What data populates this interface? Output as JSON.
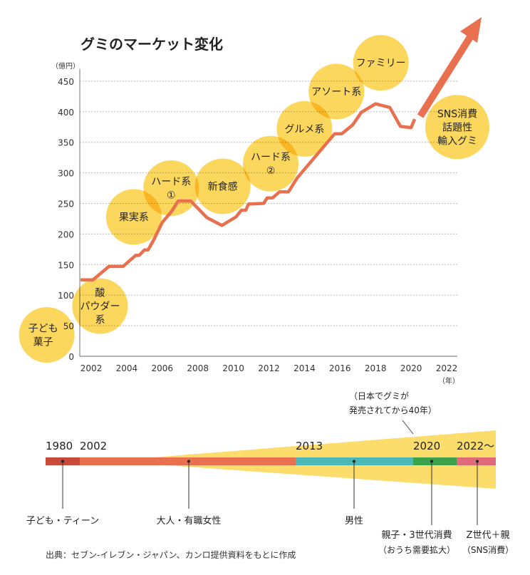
{
  "title": "グミのマーケット変化",
  "chart_data": {
    "type": "line",
    "title": "グミのマーケット変化",
    "ylabel": "（億円）",
    "xlabel": "（年）",
    "ylim": [
      0,
      450
    ],
    "xlim": [
      2001.4,
      2022
    ],
    "grid": true,
    "yticks": [
      0,
      50,
      100,
      150,
      200,
      250,
      300,
      350,
      400,
      450
    ],
    "xticks": [
      2002,
      2004,
      2006,
      2008,
      2010,
      2012,
      2014,
      2016,
      2018,
      2020,
      2022
    ],
    "series": [
      {
        "color": "#e8704f",
        "x": [
          2001.4,
          2002.1,
          2003.0,
          2003.8,
          2004.5,
          2004.7,
          2005.0,
          2005.2,
          2005.55,
          2006.0,
          2006.5,
          2006.9,
          2007.6,
          2008.5,
          2009.35,
          2010.15,
          2010.45,
          2010.7,
          2010.85,
          2011.7,
          2011.9,
          2012.2,
          2012.6,
          2013.1,
          2013.6,
          2015.7,
          2016.1,
          2016.7,
          2017.2,
          2018.0,
          2018.8,
          2019.4,
          2020.0,
          2020.2
        ],
        "y": [
          125,
          125,
          147,
          147,
          165,
          165,
          174,
          174,
          192,
          219,
          236,
          254,
          254,
          227,
          214,
          228,
          239,
          239,
          249,
          250,
          259,
          259,
          269,
          269,
          292,
          364,
          364,
          378,
          399,
          413,
          407,
          376,
          374,
          388
        ]
      }
    ],
    "trend_arrow": {
      "label": "上昇"
    },
    "annotations": [
      {
        "label": "子ども\n菓子",
        "year": 1999.5,
        "value": 35
      },
      {
        "label": "酸\nパウダー\n系",
        "year": 2002.5,
        "value": 82
      },
      {
        "label": "果実系",
        "year": 2004.4,
        "value": 228
      },
      {
        "label": "ハード系\n①",
        "year": 2006.5,
        "value": 275
      },
      {
        "label": "新食感",
        "year": 2009.4,
        "value": 278
      },
      {
        "label": "ハード系\n②",
        "year": 2012.1,
        "value": 315
      },
      {
        "label": "グルメ系",
        "year": 2014.0,
        "value": 372
      },
      {
        "label": "アソート系",
        "year": 2015.8,
        "value": 433
      },
      {
        "label": "ファミリー",
        "year": 2018.3,
        "value": 480
      },
      {
        "label": "SNS消費\n話題性\n輸入グミ",
        "year": 2022.6,
        "value": 375
      }
    ]
  },
  "timeline": {
    "segments": [
      {
        "year": "1980",
        "color": "#c84a3b",
        "audience": "子ども・ティーン"
      },
      {
        "year": "2002",
        "color": "#e8704f",
        "audience": "大人・有職女性"
      },
      {
        "year": "2013",
        "color": "#4bb8b8",
        "audience": "男性"
      },
      {
        "year": "2020",
        "color": "#3aa24a",
        "audience": "親子・3世代消費",
        "sub": "（おうち需要拡大）"
      },
      {
        "year": "2022〜",
        "color": "#e06a7a",
        "audience": "Z世代＋親",
        "sub": "（SNS消費）"
      }
    ],
    "note_line1": "（日本でグミが",
    "note_line2": "発売されてから40年）"
  },
  "source": "出典：セブン-イレブン・ジャパン、カンロ提供資料をもとに作成",
  "colors": {
    "bubble": "#fcd75e",
    "line": "#e8704f",
    "grid": "#bbbbbb",
    "wedge": "#fcdc6a"
  }
}
